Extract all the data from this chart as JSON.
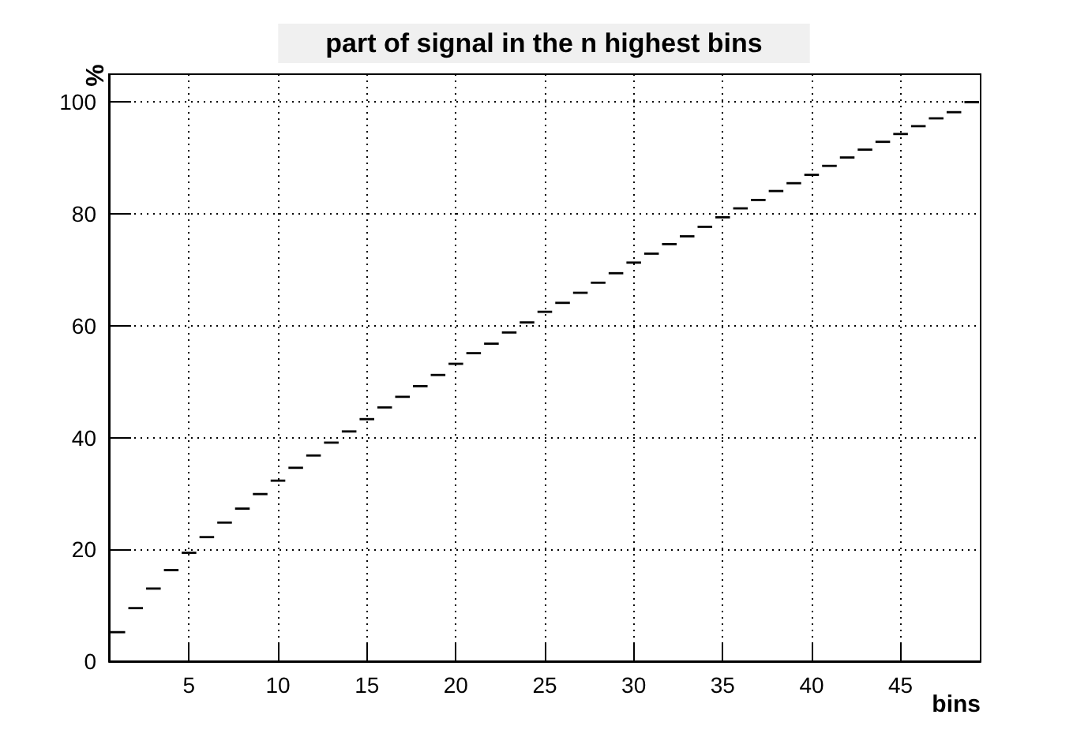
{
  "chart_data": {
    "type": "histogram",
    "title": "part of signal in the n highest bins",
    "xlabel": "bins",
    "ylabel": "%",
    "bins": [
      0.5,
      1.5,
      2.5,
      3.5,
      4.5,
      5.5,
      6.5,
      7.5,
      8.5,
      9.5,
      10.5,
      11.5,
      12.5,
      13.5,
      14.5,
      15.5,
      16.5,
      17.5,
      18.5,
      19.5,
      20.5,
      21.5,
      22.5,
      23.5,
      24.5,
      25.5,
      26.5,
      27.5,
      28.5,
      29.5,
      30.5,
      31.5,
      32.5,
      33.5,
      34.5,
      35.5,
      36.5,
      37.5,
      38.5,
      39.5,
      40.5,
      41.5,
      42.5,
      43.5,
      44.5,
      45.5,
      46.5,
      47.5,
      48.5,
      49.5
    ],
    "values": [
      5.2,
      9.5,
      13.0,
      16.3,
      19.4,
      22.2,
      24.8,
      27.3,
      29.9,
      32.3,
      34.6,
      36.8,
      39.1,
      41.1,
      43.3,
      45.4,
      47.3,
      49.2,
      51.2,
      53.2,
      55.1,
      56.8,
      58.8,
      60.6,
      62.5,
      64.1,
      65.9,
      67.7,
      69.4,
      71.3,
      72.9,
      74.6,
      76.0,
      77.7,
      79.4,
      81.0,
      82.5,
      84.1,
      85.5,
      87.0,
      88.6,
      90.1,
      91.5,
      92.9,
      94.3,
      95.7,
      97.1,
      98.2,
      100
    ],
    "color": "#000000",
    "xlim": [
      0.5,
      49.5
    ],
    "ylim": [
      0,
      105
    ],
    "xticks": [
      5,
      10,
      15,
      20,
      25,
      30,
      35,
      40,
      45
    ],
    "yticks": [
      0,
      20,
      40,
      60,
      80,
      100
    ],
    "grid": true
  }
}
